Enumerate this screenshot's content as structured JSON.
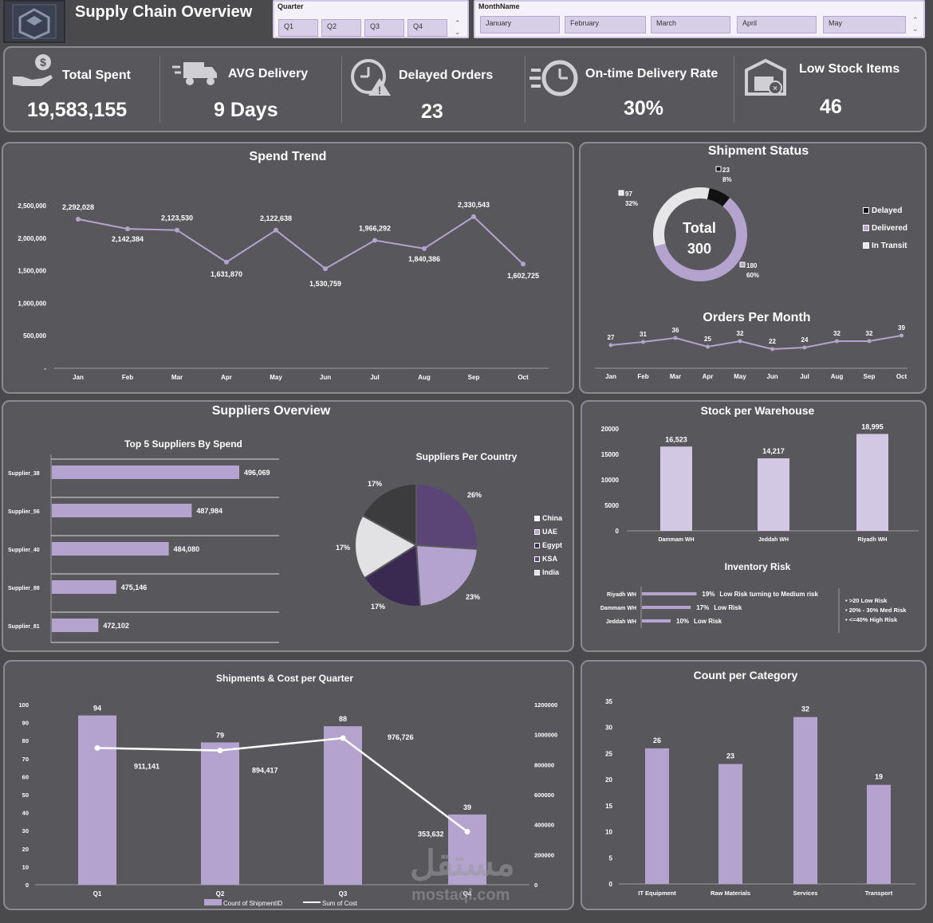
{
  "header": {
    "title": "Supply Chain Overview",
    "quarter_slicer": {
      "title": "Quarter",
      "items": [
        "Q1",
        "Q2",
        "Q3",
        "Q4"
      ]
    },
    "month_slicer": {
      "title": "MonthName",
      "items": [
        "January",
        "February",
        "March",
        "April",
        "May"
      ]
    }
  },
  "kpis": [
    {
      "label": "Total Spent",
      "value": "19,583,155",
      "icon": "hand-money-icon"
    },
    {
      "label": "AVG Delivery",
      "value": "9 Days",
      "icon": "truck-icon"
    },
    {
      "label": "Delayed Orders",
      "value": "23",
      "icon": "clock-warning-icon"
    },
    {
      "label": "On-time Delivery Rate",
      "value": "30%",
      "icon": "fast-clock-icon"
    },
    {
      "label": "Low Stock Items",
      "value": "46",
      "icon": "warehouse-icon"
    }
  ],
  "panels": {
    "spend_trend": "Spend Trend",
    "shipment_status": "Shipment Status",
    "orders_per_month": "Orders Per Month",
    "suppliers_overview": "Suppliers Overview",
    "top5": "Top 5 Suppliers By Spend",
    "suppliers_per_country": "Suppliers Per Country",
    "stock_per_warehouse": "Stock per Warehouse",
    "inventory_risk": "Inventory Risk",
    "shipments_cost": "Shipments & Cost per Quarter",
    "count_per_category": "Count per Category"
  },
  "watermark": {
    "arabic": "مستقل",
    "latin": "mostaql.com"
  },
  "colors": {
    "accent": "#b4a3cf",
    "dark": "#3a2a52",
    "mid": "#5b4577",
    "panel": "#58585c"
  },
  "chart_data": [
    {
      "id": "spend_trend",
      "type": "line",
      "categories": [
        "Jan",
        "Feb",
        "Mar",
        "Apr",
        "May",
        "Jun",
        "Jul",
        "Aug",
        "Sep",
        "Oct"
      ],
      "values": [
        2292028,
        2142384,
        2123530,
        1631870,
        2122638,
        1530759,
        1966292,
        1840386,
        2330543,
        1602725
      ],
      "labels": [
        "2,292,028",
        "2,142,384",
        "2,123,530",
        "1,631,870",
        "2,122,638",
        "1,530,759",
        "1,966,292",
        "1,840,386",
        "2,330,543",
        "1,602,725"
      ],
      "yticks": [
        "-",
        "500,000",
        "1,000,000",
        "1,500,000",
        "2,000,000",
        "2,500,000"
      ],
      "ylim": [
        0,
        2500000
      ]
    },
    {
      "id": "shipment_status",
      "type": "pie",
      "center_label": "Total",
      "center_value": "300",
      "slices": [
        {
          "name": "Delayed",
          "value": 23,
          "pct": "8%",
          "color": "#111111"
        },
        {
          "name": "Delivered",
          "value": 180,
          "pct": "60%",
          "color": "#b4a3cf"
        },
        {
          "name": "In Transit",
          "value": 97,
          "pct": "32%",
          "color": "#e6e6e8"
        }
      ]
    },
    {
      "id": "orders_per_month",
      "type": "line",
      "categories": [
        "Jan",
        "Feb",
        "Mar",
        "Apr",
        "May",
        "Jun",
        "Jul",
        "Aug",
        "Sep",
        "Oct"
      ],
      "values": [
        27,
        31,
        36,
        25,
        32,
        22,
        24,
        32,
        32,
        39
      ],
      "ylim": [
        0,
        60
      ]
    },
    {
      "id": "top5_suppliers",
      "type": "bar",
      "categories": [
        "Supplier_38",
        "Supplier_56",
        "Supplier_40",
        "Supplier_88",
        "Supplier_81"
      ],
      "values": [
        496069,
        487984,
        484080,
        475146,
        472102
      ],
      "labels": [
        "496,069",
        "487,984",
        "484,080",
        "475,146",
        "472,102"
      ],
      "xlim": [
        465000,
        500000
      ]
    },
    {
      "id": "suppliers_per_country",
      "type": "pie",
      "categories": [
        "China",
        "UAE",
        "Egypt",
        "KSA",
        "India"
      ],
      "labels": [
        "26%",
        "23%",
        "17%",
        "17%",
        "17%"
      ],
      "values": [
        26,
        23,
        17,
        17,
        17
      ],
      "colors": [
        "#5b4577",
        "#b4a3cf",
        "#3a2a52",
        "#e2e2e4",
        "#3c3c3e"
      ],
      "legend_colors": [
        "#f4f4f4",
        "#b4a3cf",
        "#3a2a52",
        "#5b4577",
        "#e2e2e4"
      ]
    },
    {
      "id": "stock_per_warehouse",
      "type": "bar",
      "categories": [
        "Dammam WH",
        "Jeddah WH",
        "Riyadh WH"
      ],
      "values": [
        16523,
        14217,
        18995
      ],
      "labels": [
        "16,523",
        "14,217",
        "18,995"
      ],
      "yticks": [
        "0",
        "5000",
        "10000",
        "15000",
        "20000"
      ],
      "ylim": [
        0,
        20000
      ]
    },
    {
      "id": "inventory_risk",
      "type": "bar",
      "categories": [
        "Riyadh WH",
        "Dammam WH",
        "Jeddah WH"
      ],
      "values": [
        19,
        17,
        10
      ],
      "labels": [
        "19%",
        "17%",
        "10%"
      ],
      "notes": [
        "Low Risk turning to Medium risk",
        "Low Risk",
        "Low Risk"
      ],
      "legend": [
        ">20 Low Risk",
        "20% - 30% Med Risk",
        "<=40% High Risk"
      ]
    },
    {
      "id": "shipments_cost",
      "type": "bar",
      "categories": [
        "Q1",
        "Q2",
        "Q3",
        "Q4"
      ],
      "series": [
        {
          "name": "Count of ShipmentID",
          "values": [
            94,
            79,
            88,
            39
          ]
        },
        {
          "name": "Sum of Cost",
          "values": [
            911141,
            894417,
            976726,
            353632
          ],
          "labels": [
            "911,141",
            "894,417",
            "976,726",
            "353,632"
          ]
        }
      ],
      "yticks_left": [
        "0",
        "10",
        "20",
        "30",
        "40",
        "50",
        "60",
        "70",
        "80",
        "90",
        "100"
      ],
      "yticks_right": [
        "0",
        "200000",
        "400000",
        "600000",
        "800000",
        "1000000",
        "1200000"
      ],
      "ylim_left": [
        0,
        100
      ],
      "ylim_right": [
        0,
        1200000
      ]
    },
    {
      "id": "count_per_category",
      "type": "bar",
      "categories": [
        "IT Equipment",
        "Raw Materials",
        "Services",
        "Transport"
      ],
      "values": [
        26,
        23,
        32,
        19
      ],
      "yticks": [
        "0",
        "5",
        "10",
        "15",
        "20",
        "25",
        "30",
        "35"
      ],
      "ylim": [
        0,
        35
      ]
    }
  ]
}
